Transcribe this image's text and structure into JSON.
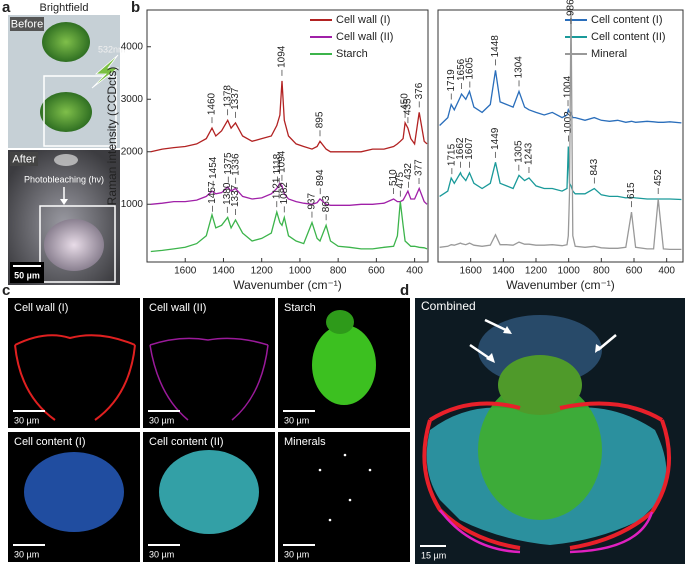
{
  "panels": {
    "a": "a",
    "b": "b",
    "c": "c",
    "d": "d"
  },
  "panel_a": {
    "title": "Brightfield",
    "before": "Before",
    "laser": "532nm",
    "after": "After",
    "process": "Photobleaching (hν)",
    "scale": "50 µm"
  },
  "panel_c": {
    "labels": [
      "Cell wall (I)",
      "Cell wall (II)",
      "Starch",
      "Cell content (I)",
      "Cell content (II)",
      "Minerals"
    ],
    "scale": "30 µm"
  },
  "panel_d": {
    "label": "Combined",
    "scale": "15 µm"
  },
  "chart_data": [
    {
      "type": "line",
      "ylabel": "Raman intensity (CCDcts)",
      "xlabel": "Wavenumber (cm⁻¹)",
      "x": [
        1780,
        1720,
        1660,
        1600,
        1540,
        1490,
        1460,
        1440,
        1410,
        1378,
        1360,
        1337,
        1300,
        1250,
        1200,
        1150,
        1121,
        1105,
        1094,
        1082,
        1060,
        1020,
        980,
        937,
        910,
        895,
        863,
        840,
        800,
        740,
        680,
        620,
        560,
        510,
        490,
        475,
        460,
        450,
        435,
        420,
        400,
        376,
        350,
        335
      ],
      "xlim": [
        1800,
        330
      ],
      "xticks": [
        1600,
        1400,
        1200,
        1000,
        800,
        600,
        400
      ],
      "ylim": [
        -100,
        4700
      ],
      "yticks": [
        1000,
        2000,
        3000,
        4000
      ],
      "legend": "upper right",
      "series": [
        {
          "name": "Cell wall (I)",
          "color": "#b22222",
          "values": [
            2000,
            2050,
            2080,
            2100,
            2150,
            2250,
            2450,
            2300,
            2400,
            2600,
            2450,
            2550,
            2300,
            2200,
            2250,
            2300,
            2500,
            2700,
            3350,
            2600,
            2300,
            2150,
            2100,
            2050,
            2100,
            2200,
            2050,
            2000,
            2000,
            2000,
            2000,
            2050,
            2050,
            2100,
            2150,
            2200,
            2250,
            2550,
            2450,
            2250,
            2150,
            2750,
            2200,
            2150
          ],
          "peaks": [
            1460,
            1378,
            1337,
            1094,
            895,
            450,
            435,
            376
          ]
        },
        {
          "name": "Cell wall (II)",
          "color": "#a020a8",
          "values": [
            1000,
            1020,
            1050,
            1050,
            1080,
            1150,
            1250,
            1200,
            1220,
            1330,
            1250,
            1300,
            1150,
            1100,
            1120,
            1200,
            1300,
            1400,
            1350,
            1200,
            1100,
            1050,
            1020,
            1000,
            1030,
            1100,
            1000,
            980,
            980,
            980,
            1000,
            1000,
            1020,
            1100,
            1050,
            1050,
            1080,
            1150,
            1250,
            1100,
            1100,
            1300,
            1050,
            1000
          ],
          "peaks": [
            1454,
            1375,
            1336,
            1118,
            1094,
            894,
            510,
            432,
            377
          ]
        },
        {
          "name": "Starch",
          "color": "#3cb44b",
          "values": [
            100,
            120,
            150,
            180,
            250,
            400,
            800,
            550,
            600,
            750,
            550,
            700,
            450,
            300,
            350,
            450,
            850,
            650,
            600,
            750,
            400,
            300,
            250,
            650,
            350,
            300,
            600,
            300,
            200,
            180,
            150,
            150,
            180,
            200,
            400,
            1050,
            600,
            300,
            250,
            200,
            200,
            180,
            170,
            150
          ],
          "peaks": [
            1457,
            1380,
            1337,
            1121,
            1082,
            937,
            863,
            475
          ]
        }
      ]
    },
    {
      "type": "line",
      "xlabel": "Wavenumber (cm⁻¹)",
      "x": [
        1790,
        1740,
        1719,
        1700,
        1662,
        1656,
        1630,
        1607,
        1580,
        1530,
        1480,
        1448,
        1420,
        1380,
        1340,
        1304,
        1270,
        1243,
        1200,
        1150,
        1100,
        1040,
        1010,
        1002,
        995,
        986,
        975,
        960,
        900,
        843,
        800,
        750,
        700,
        650,
        615,
        590,
        520,
        480,
        452,
        420,
        380,
        310
      ],
      "xlim": [
        1800,
        300
      ],
      "xticks": [
        1600,
        1400,
        1200,
        1000,
        800,
        600,
        400
      ],
      "ylim": [
        -100,
        4700
      ],
      "legend": "upper right",
      "series": [
        {
          "name": "Cell content (I)",
          "color": "#2a6ebb",
          "values": [
            2500,
            2650,
            2900,
            2800,
            3050,
            3100,
            3000,
            3150,
            2850,
            2750,
            2900,
            3550,
            2950,
            2900,
            2850,
            3150,
            2850,
            2800,
            2750,
            2700,
            2750,
            2650,
            2700,
            2800,
            2750,
            2750,
            2650,
            2650,
            2600,
            2650,
            2600,
            2580,
            2600,
            2560,
            2580,
            2560,
            2580,
            2570,
            2560,
            2560,
            2570,
            2550
          ],
          "peaks": [
            1719,
            1656,
            1605,
            1448,
            1304,
            1004
          ]
        },
        {
          "name": "Cell content (II)",
          "color": "#1a9a9a",
          "values": [
            1150,
            1250,
            1500,
            1400,
            1600,
            1550,
            1450,
            1600,
            1400,
            1300,
            1400,
            1800,
            1400,
            1350,
            1300,
            1550,
            1450,
            1500,
            1350,
            1300,
            1300,
            1250,
            1300,
            2100,
            1400,
            1350,
            1250,
            1200,
            1200,
            1300,
            1180,
            1150,
            1150,
            1120,
            1130,
            1120,
            1100,
            1100,
            1100,
            1100,
            1100,
            1090
          ],
          "peaks": [
            1715,
            1662,
            1607,
            1449,
            1305,
            1243,
            1002,
            843
          ]
        },
        {
          "name": "Mineral",
          "color": "#999999",
          "values": [
            180,
            200,
            230,
            220,
            260,
            250,
            230,
            260,
            220,
            200,
            220,
            420,
            230,
            230,
            220,
            280,
            240,
            240,
            220,
            220,
            230,
            210,
            230,
            400,
            1200,
            4800,
            400,
            200,
            180,
            200,
            170,
            160,
            160,
            180,
            850,
            180,
            150,
            150,
            1100,
            150,
            140,
            140
          ],
          "peaks": [
            986,
            615,
            452
          ]
        }
      ]
    }
  ]
}
